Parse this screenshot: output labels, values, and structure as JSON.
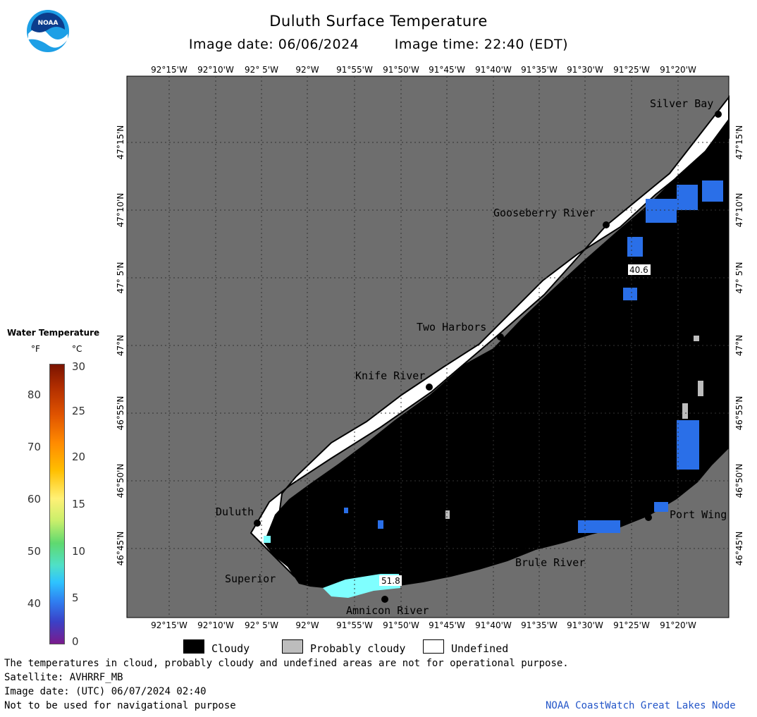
{
  "header": {
    "title": "Duluth Surface Temperature",
    "image_date": "Image date: 06/06/2024",
    "image_time": "Image time: 22:40 (EDT)"
  },
  "logo": {
    "text": "NOAA"
  },
  "axes": {
    "lon_labels": [
      "92°15'W",
      "92°10'W",
      "92° 5'W",
      "92°W",
      "91°55'W",
      "91°50'W",
      "91°45'W",
      "91°40'W",
      "91°35'W",
      "91°30'W",
      "91°25'W",
      "91°20'W"
    ],
    "lat_labels": [
      "47°15'N",
      "47°10'N",
      "47° 5'N",
      "47°N",
      "46°55'N",
      "46°50'N",
      "46°45'N"
    ]
  },
  "places": [
    {
      "name": "Silver Bay"
    },
    {
      "name": "Gooseberry River"
    },
    {
      "name": "Two Harbors"
    },
    {
      "name": "Knife River"
    },
    {
      "name": "Duluth"
    },
    {
      "name": "Superior"
    },
    {
      "name": "Amnicon River"
    },
    {
      "name": "Brule River"
    },
    {
      "name": "Port Wing"
    }
  ],
  "temperature_readouts": [
    {
      "value": "40.6"
    },
    {
      "value": "51.8"
    }
  ],
  "legend": {
    "title": "Water Temperature",
    "unit_f": "°F",
    "unit_c": "°C",
    "f_ticks": [
      "80",
      "70",
      "60",
      "50",
      "40"
    ],
    "c_ticks": [
      "30",
      "25",
      "20",
      "15",
      "10",
      "5",
      "0"
    ],
    "categories": [
      "Cloudy",
      "Probably cloudy",
      "Undefined"
    ],
    "category_colors": [
      "#000000",
      "#bdbdbd",
      "#ffffff"
    ]
  },
  "notes": [
    "The temperatures in cloud, probably cloudy and undefined areas are not for operational purpose.",
    "Satellite: AVHRRF_MB",
    "Image date: (UTC) 06/07/2024  02:40",
    "Not to be used for navigational purpose"
  ],
  "credit": "NOAA CoastWatch Great Lakes Node",
  "colors": {
    "land": "#6e6e6e",
    "cloud": "#000000",
    "undefined": "#ffffff",
    "cold_water": "#2a6fe8",
    "warm_water": "#7fffff"
  }
}
